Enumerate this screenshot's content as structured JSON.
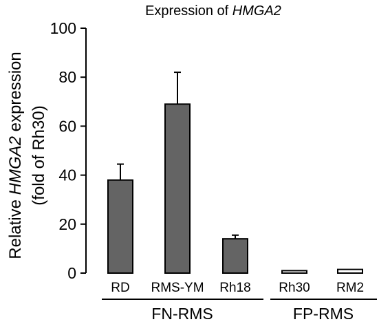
{
  "chart_data": {
    "type": "bar",
    "title": {
      "prefix": "Expression of ",
      "gene": "HMGA2"
    },
    "ylabel": {
      "line1_prefix": "Relative ",
      "line1_gene": "HMGA2",
      "line1_suffix": " expression",
      "line2": "(fold of Rh30)"
    },
    "xlabel": "",
    "ylim": [
      0,
      100
    ],
    "yticks": [
      "0",
      "20",
      "40",
      "60",
      "80",
      "100"
    ],
    "categories": [
      "RD",
      "RMS-YM",
      "Rh18",
      "Rh30",
      "RM2"
    ],
    "values": [
      38,
      69,
      14,
      1,
      1.5
    ],
    "errors": [
      6.5,
      13,
      1.5,
      0,
      0
    ],
    "groups": [
      {
        "label": "FN-RMS",
        "categories": [
          "RD",
          "RMS-YM",
          "Rh18"
        ]
      },
      {
        "label": "FP-RMS",
        "categories": [
          "Rh30",
          "RM2"
        ]
      }
    ],
    "colors": {
      "FN-RMS": "#646464",
      "FP-RMS": "#ffffff",
      "outline": "#000000"
    },
    "grid": false,
    "legend": "none"
  }
}
